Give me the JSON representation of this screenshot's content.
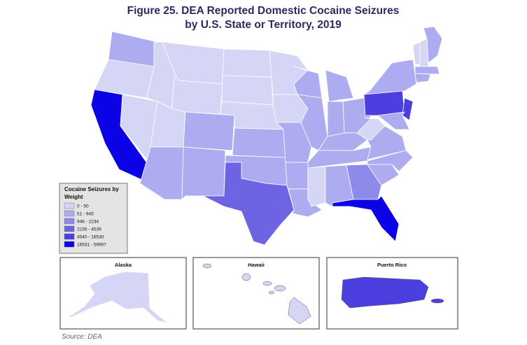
{
  "title": [
    "Figure 25. DEA Reported Domestic Cocaine Seizures",
    "by U.S. State or Territory, 2019"
  ],
  "legend": {
    "title": [
      "Cocaine Seizures by",
      "Weight"
    ],
    "items": [
      {
        "label": "0 - 50",
        "color": "#d5d5f6"
      },
      {
        "label": "51 - 945",
        "color": "#aeacf0"
      },
      {
        "label": "946 - 2234",
        "color": "#8e8aea"
      },
      {
        "label": "2235 - 4539",
        "color": "#6d64e3"
      },
      {
        "label": "4540 - 16530",
        "color": "#4b3fe0"
      },
      {
        "label": "16531 - 59907",
        "color": "#0c02e6"
      }
    ]
  },
  "insets": [
    "Alaska",
    "Hawaii",
    "Puerto Rico"
  ],
  "source": "Source: DEA"
}
